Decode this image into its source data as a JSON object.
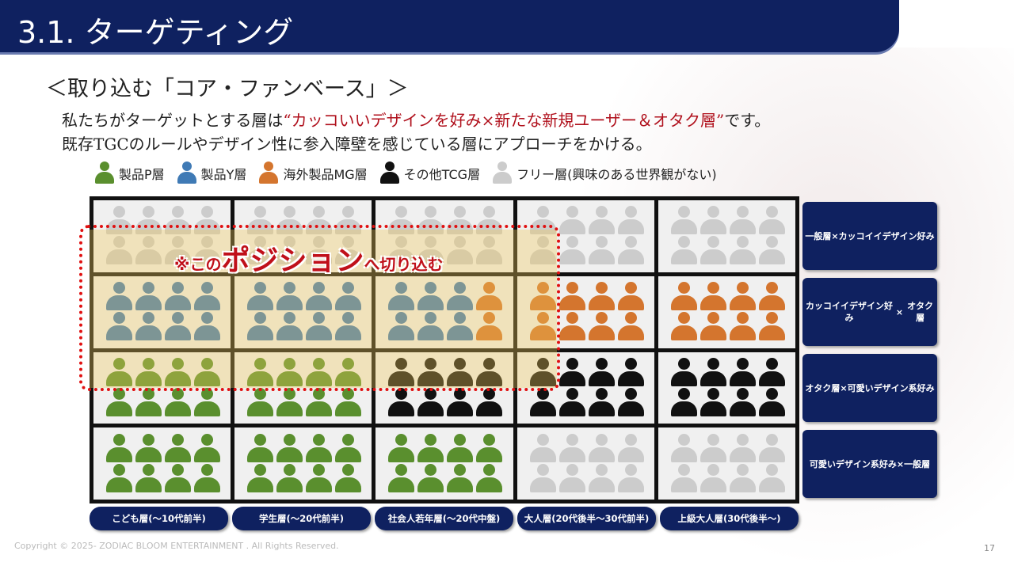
{
  "header": {
    "title": "3.1. ターゲティング"
  },
  "subtitle": "＜取り込む「コア・ファンベース」＞",
  "desc": {
    "line1_pre": "私たちがターゲットとする層は",
    "line1_highlight": "“カッコいいデザインを好み×新たな新規ユーザー＆オタク層”",
    "line1_post": "です。",
    "line2": "既存TGCのルールやデザイン性に参入障壁を感じている層にアプローチをかける。"
  },
  "colors": {
    "P": "#5a8f2e",
    "Y": "#3f7ab5",
    "M": "#d4752e",
    "T": "#111111",
    "F": "#cccccc",
    "G": "#cccccc",
    "accent": "#0f2160",
    "highlight": "#c0101a"
  },
  "legend": [
    {
      "key": "P",
      "label": "製品P層"
    },
    {
      "key": "Y",
      "label": "製品Y層"
    },
    {
      "key": "M",
      "label": "海外製品MG層"
    },
    {
      "key": "T",
      "label": "その他TCG層"
    },
    {
      "key": "F",
      "label": "フリー層(興味のある世界観がない)"
    }
  ],
  "grid": {
    "cells": [
      [
        "FFFFFFFF",
        "FFFFFFFF",
        "FFFFFFFF",
        "FFFFFFFF",
        "FFFFFFFF"
      ],
      [
        "YYYYYYYY",
        "YYYYYYYY",
        "YYYMYYYM",
        "MMMMMMMM",
        "MMMMMMMM"
      ],
      [
        "PPPPPPPP",
        "PPPPPPPP",
        "TTTTTTTT",
        "TTTTTTTT",
        "TTTTTTTT"
      ],
      [
        "PPPPPPPP",
        "PPPPPPPP",
        "PPPPPPPP",
        "FFFFFFFF",
        "FFFFFFFF"
      ]
    ]
  },
  "catch": {
    "small1": "※この",
    "large": "ポジション",
    "small2": "へ切り込む"
  },
  "row_labels": [
    [
      "一般層",
      "×",
      "カッコイイデザイン好み"
    ],
    [
      "カッコイイデザイン好み",
      "×",
      "オタク層"
    ],
    [
      "オタク層",
      "×",
      "可愛いデザイン系好み"
    ],
    [
      "可愛いデザイン系好み",
      "×",
      "一般層"
    ]
  ],
  "col_labels": [
    "こども層(～10代前半)",
    "学生層(～20代前半)",
    "社会人若年層(～20代中盤)",
    "大人層(20代後半～30代前半)",
    "上級大人層(30代後半～)"
  ],
  "footer": {
    "copyright": "Copyright © 2025- ZODIAC BLOOM ENTERTAINMENT . All Rights Reserved.",
    "page": "17"
  }
}
